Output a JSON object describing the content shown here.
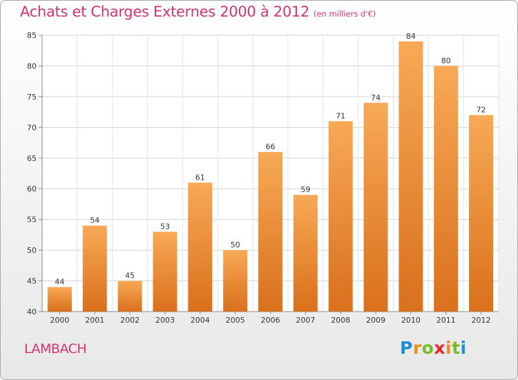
{
  "header": {
    "title": "Achats et Charges Externes 2000 à 2012",
    "subtitle": "(en milliers d'€)"
  },
  "footer": {
    "commune": "LAMBACH",
    "logo_letters": [
      "P",
      "r",
      "o",
      "x",
      "i",
      "t",
      "i"
    ],
    "logo_colors": [
      "#1b8fd6",
      "#f08a1d",
      "#7ab929",
      "#e8262d",
      "#f08a1d",
      "#7ab929",
      "#1b8fd6"
    ]
  },
  "colors": {
    "bar_light": "#f8a956",
    "bar_dark": "#d9701c",
    "title": "#d2346e"
  },
  "chart_data": {
    "type": "bar",
    "categories": [
      "2000",
      "2001",
      "2002",
      "2003",
      "2004",
      "2005",
      "2006",
      "2007",
      "2008",
      "2009",
      "2010",
      "2011",
      "2012"
    ],
    "values": [
      44,
      54,
      45,
      53,
      61,
      50,
      66,
      59,
      71,
      74,
      84,
      80,
      72
    ],
    "ylim": [
      40,
      85
    ],
    "yticks": [
      40,
      45,
      50,
      55,
      60,
      65,
      70,
      75,
      80,
      85
    ],
    "grid": true
  }
}
